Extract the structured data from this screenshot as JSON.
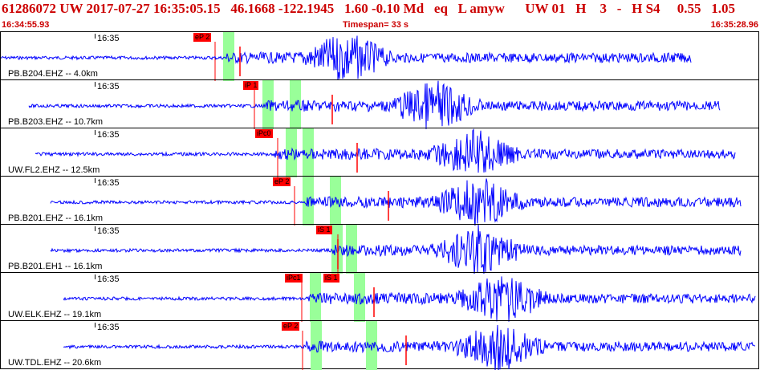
{
  "header": {
    "title": "61286072 UW 2017-07-27 16:35:05.15   46.1668 -122.1945   1.60 -0.10 Md   eq   L amyw      UW 01   H    3   -   H S4     0.55   1.05",
    "start_time": "16:34:55.93",
    "timespan": "Timespan=  33 s",
    "end_time": "16:35:28.96"
  },
  "colors": {
    "title": "#cc0000",
    "trace": "#0000ff",
    "pick": "#ff0000",
    "window": "#99ff99"
  },
  "panels": [
    {
      "station": "PB.B204.EHZ -- 4.0km",
      "time_label": "16:35",
      "pick_label": "eP 2"
    },
    {
      "station": "PB.B203.EHZ -- 10.7km",
      "time_label": "16:35",
      "pick_label": "iP 1"
    },
    {
      "station": "UW.FL2.EHZ -- 12.5km",
      "time_label": "16:35",
      "pick_label": "iPc0"
    },
    {
      "station": "PB.B201.EHZ -- 16.1km",
      "time_label": "16:35",
      "pick_label": "eP 2"
    },
    {
      "station": "PB.B201.EH1 -- 16.1km",
      "time_label": "16:35",
      "pick_label": "iS 1"
    },
    {
      "station": "UW.ELK.EHZ -- 19.1km",
      "time_label": "16:35",
      "pick_label": "iPc1",
      "pick_label_2": "iS 1"
    },
    {
      "station": "UW.TDL.EHZ -- 20.6km",
      "time_label": "16:35",
      "pick_label": "eP 2"
    }
  ]
}
